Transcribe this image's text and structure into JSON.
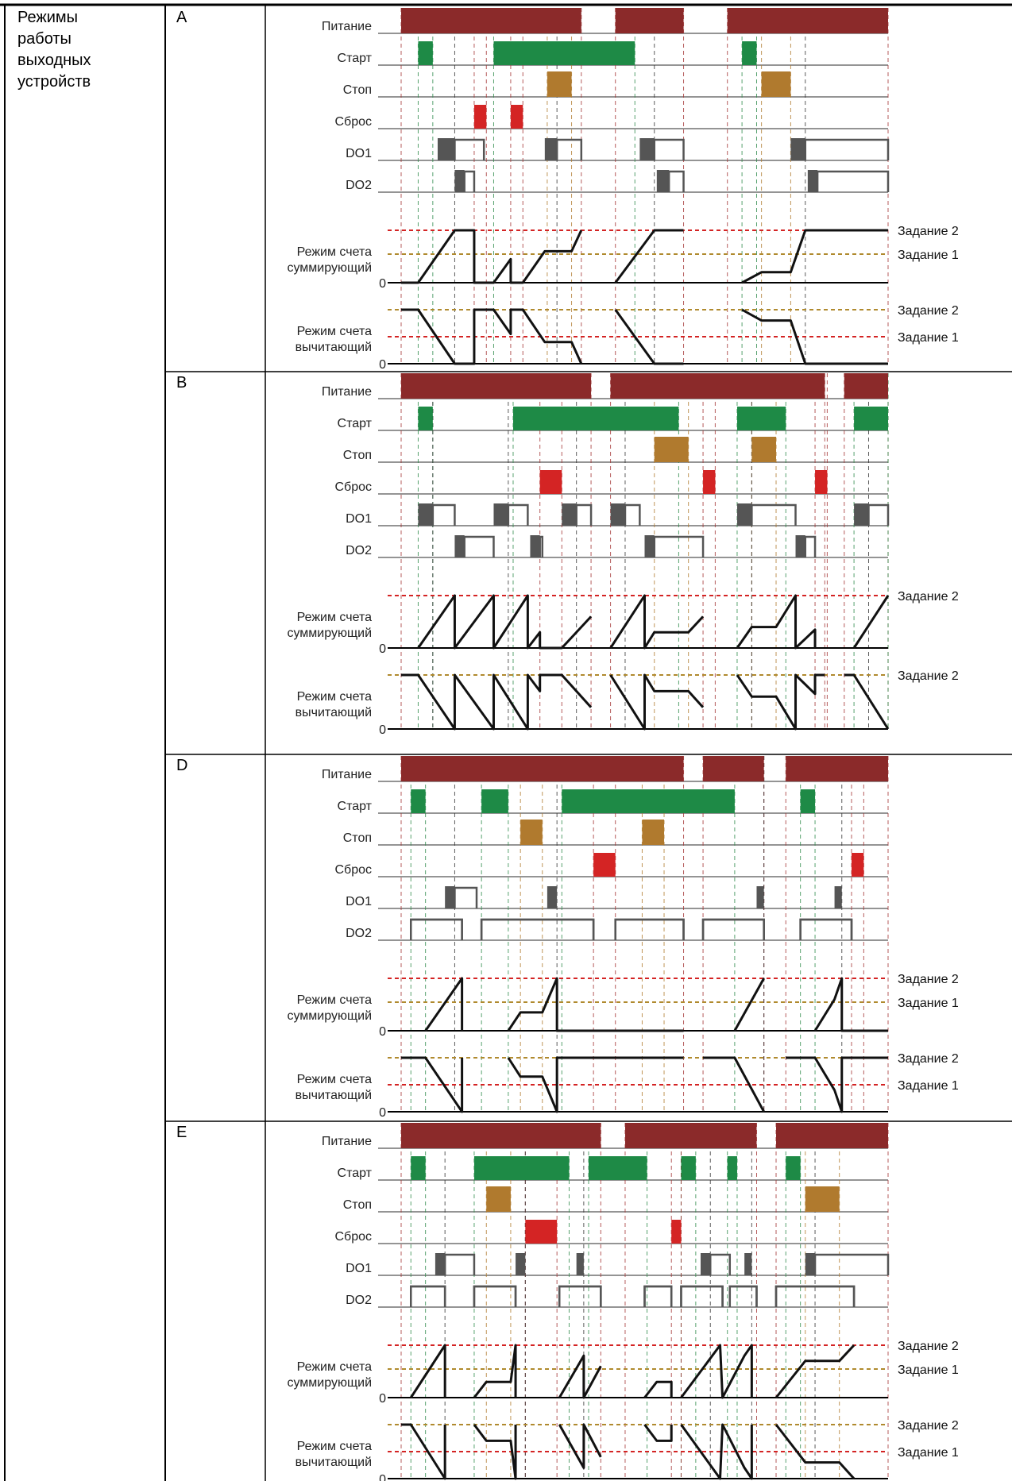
{
  "header_row": {
    "left_cell": [
      "Режимы",
      "работы",
      "выходных",
      "устройств"
    ]
  },
  "signals": [
    "Питание",
    "Старт",
    "Стоп",
    "Сброс",
    "DO1",
    "DO2"
  ],
  "mode_labels": {
    "summing": [
      "Режим счета",
      "суммирующий"
    ],
    "subtracting": [
      "Режим счета",
      "вычитающий"
    ],
    "zero": "0"
  },
  "task_labels": {
    "task2": "Задание 2",
    "task1": "Задание 1"
  },
  "colors": {
    "power": "#8B2A2A",
    "start": "#1E8A46",
    "stop": "#B07A2E",
    "reset": "#D42424",
    "do": "#555555",
    "task2_line": "#D42424",
    "task1_line": "#B08A2E",
    "guide_green": "#2E8A4A",
    "guide_orange": "#B07A2E",
    "guide_red": "#A33333",
    "guide_dark": "#333333"
  },
  "sections": [
    {
      "id": "A",
      "label": "A",
      "task1": true,
      "power": [
        [
          0.0,
          0.37
        ],
        [
          0.44,
          0.58
        ],
        [
          0.67,
          1.0
        ]
      ],
      "start": [
        [
          0.035,
          0.065
        ],
        [
          0.19,
          0.48
        ],
        [
          0.7,
          0.73
        ]
      ],
      "stop": [
        [
          0.3,
          0.35
        ],
        [
          0.74,
          0.8
        ]
      ],
      "reset": [
        [
          0.15,
          0.175
        ],
        [
          0.225,
          0.25
        ]
      ],
      "do1": [
        [
          0.075,
          0.11,
          0.17
        ],
        [
          0.295,
          0.32,
          0.37
        ],
        [
          0.49,
          0.52,
          0.58
        ],
        [
          0.8,
          0.83,
          1.0
        ]
      ],
      "do2": [
        [
          0.11,
          0.13,
          0.15
        ],
        [
          0.525,
          0.55,
          0.58
        ],
        [
          0.835,
          0.855,
          1.0
        ]
      ],
      "sum_curve": [
        [
          0,
          0
        ],
        [
          0.035,
          0
        ],
        [
          0.11,
          1
        ],
        [
          0.15,
          1
        ],
        [
          0.15,
          0
        ],
        [
          0.19,
          0
        ],
        [
          0.225,
          0.45
        ],
        [
          0.225,
          0
        ],
        [
          0.25,
          0
        ],
        [
          0.295,
          0.6
        ],
        [
          0.35,
          0.6
        ],
        [
          0.37,
          1
        ]
      ],
      "sum_curve2": [
        [
          0.44,
          0
        ],
        [
          0.52,
          1
        ],
        [
          0.58,
          1
        ]
      ],
      "sum_curve3": [
        [
          0.7,
          0
        ],
        [
          0.74,
          0.2
        ],
        [
          0.8,
          0.2
        ],
        [
          0.83,
          1
        ],
        [
          1.0,
          1
        ]
      ],
      "sub_curve": [
        [
          0,
          1
        ],
        [
          0.035,
          1
        ],
        [
          0.11,
          0
        ],
        [
          0.15,
          0
        ],
        [
          0.15,
          1
        ],
        [
          0.19,
          1
        ],
        [
          0.225,
          0.55
        ],
        [
          0.225,
          1
        ],
        [
          0.25,
          1
        ],
        [
          0.295,
          0.4
        ],
        [
          0.35,
          0.4
        ],
        [
          0.37,
          0
        ]
      ],
      "sub_curve2": [
        [
          0.44,
          1
        ],
        [
          0.52,
          0
        ],
        [
          0.58,
          0
        ]
      ],
      "sub_curve3": [
        [
          0.7,
          1
        ],
        [
          0.74,
          0.8
        ],
        [
          0.8,
          0.8
        ],
        [
          0.83,
          0
        ],
        [
          1.0,
          0
        ]
      ]
    },
    {
      "id": "B",
      "label": "B",
      "task1": false,
      "power": [
        [
          0.0,
          0.39
        ],
        [
          0.43,
          0.87
        ],
        [
          0.91,
          1.0
        ]
      ],
      "start": [
        [
          0.035,
          0.065
        ],
        [
          0.23,
          0.57
        ],
        [
          0.69,
          0.79
        ],
        [
          0.93,
          1.0
        ]
      ],
      "stop": [
        [
          0.52,
          0.59
        ],
        [
          0.72,
          0.77
        ]
      ],
      "reset": [
        [
          0.285,
          0.33
        ],
        [
          0.62,
          0.645
        ],
        [
          0.85,
          0.875
        ]
      ],
      "do1": [
        [
          0.035,
          0.065,
          0.11
        ],
        [
          0.19,
          0.22,
          0.26
        ],
        [
          0.33,
          0.36,
          0.39
        ],
        [
          0.43,
          0.46,
          0.49
        ],
        [
          0.69,
          0.72,
          0.81
        ],
        [
          0.93,
          0.96,
          1.0
        ]
      ],
      "do2": [
        [
          0.11,
          0.13,
          0.19
        ],
        [
          0.265,
          0.285,
          0.29
        ],
        [
          0.5,
          0.52,
          0.62
        ],
        [
          0.81,
          0.83,
          0.85
        ]
      ],
      "sum_curve": [
        [
          0.035,
          0
        ],
        [
          0.11,
          1
        ],
        [
          0.11,
          0
        ],
        [
          0.19,
          1
        ],
        [
          0.19,
          0
        ],
        [
          0.26,
          1
        ],
        [
          0.26,
          0
        ],
        [
          0.285,
          0.3
        ],
        [
          0.285,
          0
        ],
        [
          0.33,
          0
        ],
        [
          0.39,
          0.6
        ]
      ],
      "sum_curve2": [
        [
          0.43,
          0
        ],
        [
          0.5,
          1
        ],
        [
          0.5,
          0
        ],
        [
          0.52,
          0.3
        ],
        [
          0.59,
          0.3
        ],
        [
          0.62,
          0.6
        ]
      ],
      "sum_curve3": [
        [
          0.69,
          0
        ],
        [
          0.72,
          0.4
        ],
        [
          0.77,
          0.4
        ],
        [
          0.81,
          1
        ],
        [
          0.81,
          0
        ],
        [
          0.85,
          0.35
        ],
        [
          0.85,
          0
        ]
      ],
      "sum_curve4": [
        [
          0.93,
          0
        ],
        [
          1.0,
          1
        ]
      ],
      "sub_curve": [
        [
          0,
          1
        ],
        [
          0.035,
          1
        ],
        [
          0.11,
          0
        ],
        [
          0.11,
          1
        ],
        [
          0.19,
          0
        ],
        [
          0.19,
          1
        ],
        [
          0.26,
          0
        ],
        [
          0.26,
          1
        ],
        [
          0.285,
          0.7
        ],
        [
          0.285,
          1
        ],
        [
          0.33,
          1
        ],
        [
          0.39,
          0.4
        ]
      ],
      "sub_curve2": [
        [
          0.43,
          1
        ],
        [
          0.5,
          0
        ],
        [
          0.5,
          1
        ],
        [
          0.52,
          0.7
        ],
        [
          0.59,
          0.7
        ],
        [
          0.62,
          0.4
        ]
      ],
      "sub_curve3": [
        [
          0.69,
          1
        ],
        [
          0.72,
          0.6
        ],
        [
          0.77,
          0.6
        ],
        [
          0.81,
          0
        ],
        [
          0.81,
          1
        ],
        [
          0.85,
          0.65
        ],
        [
          0.85,
          1
        ],
        [
          0.87,
          1
        ]
      ],
      "sub_curve4": [
        [
          0.91,
          1
        ],
        [
          0.93,
          1
        ],
        [
          1.0,
          0
        ]
      ]
    },
    {
      "id": "D",
      "label": "D",
      "task1": true,
      "power": [
        [
          0.0,
          0.58
        ],
        [
          0.62,
          0.745
        ],
        [
          0.79,
          1.0
        ]
      ],
      "start": [
        [
          0.02,
          0.05
        ],
        [
          0.165,
          0.22
        ],
        [
          0.33,
          0.685
        ],
        [
          0.82,
          0.85
        ]
      ],
      "stop": [
        [
          0.245,
          0.29
        ],
        [
          0.495,
          0.54
        ]
      ],
      "reset": [
        [
          0.395,
          0.44
        ],
        [
          0.925,
          0.95
        ]
      ],
      "do1": [
        [
          0.09,
          0.11,
          0.155
        ],
        [
          0.3,
          0.32,
          0.32
        ],
        [
          0.73,
          0.745,
          0.745
        ],
        [
          0.89,
          0.905,
          0.905
        ]
      ],
      "do2": [
        [
          0.02,
          0.02,
          0.125
        ],
        [
          0.165,
          0.165,
          0.395
        ],
        [
          0.44,
          0.44,
          0.58
        ],
        [
          0.62,
          0.62,
          0.745
        ],
        [
          0.82,
          0.82,
          0.925
        ]
      ],
      "sum_curve": [
        [
          0.05,
          0
        ],
        [
          0.125,
          1
        ],
        [
          0.125,
          0
        ]
      ],
      "sum_curve2": [
        [
          0.22,
          0
        ],
        [
          0.245,
          0.35
        ],
        [
          0.29,
          0.35
        ],
        [
          0.32,
          1
        ],
        [
          0.32,
          0
        ],
        [
          0.58,
          0
        ]
      ],
      "sum_curve3": [
        [
          0.685,
          0
        ],
        [
          0.745,
          1
        ]
      ],
      "sum_curve4": [
        [
          0.85,
          0
        ],
        [
          0.89,
          0.6
        ],
        [
          0.905,
          1
        ],
        [
          0.905,
          0
        ],
        [
          1.0,
          0
        ]
      ],
      "sub_curve": [
        [
          0,
          1
        ],
        [
          0.05,
          1
        ],
        [
          0.125,
          0
        ],
        [
          0.125,
          1
        ]
      ],
      "sub_curve2": [
        [
          0.22,
          1
        ],
        [
          0.245,
          0.65
        ],
        [
          0.29,
          0.65
        ],
        [
          0.32,
          0
        ],
        [
          0.32,
          1
        ],
        [
          0.58,
          1
        ]
      ],
      "sub_curve3": [
        [
          0.62,
          1
        ],
        [
          0.685,
          1
        ],
        [
          0.745,
          0
        ]
      ],
      "sub_curve4": [
        [
          0.79,
          1
        ],
        [
          0.85,
          1
        ],
        [
          0.89,
          0.4
        ],
        [
          0.905,
          0
        ],
        [
          0.905,
          1
        ],
        [
          1.0,
          1
        ]
      ]
    },
    {
      "id": "E",
      "label": "E",
      "task1": true,
      "power": [
        [
          0.0,
          0.41
        ],
        [
          0.46,
          0.73
        ],
        [
          0.77,
          1.0
        ]
      ],
      "start": [
        [
          0.02,
          0.05
        ],
        [
          0.15,
          0.345
        ],
        [
          0.385,
          0.505
        ],
        [
          0.575,
          0.605
        ],
        [
          0.67,
          0.69
        ],
        [
          0.79,
          0.82
        ]
      ],
      "stop": [
        [
          0.175,
          0.225
        ],
        [
          0.83,
          0.9
        ]
      ],
      "reset": [
        [
          0.255,
          0.32
        ],
        [
          0.555,
          0.575
        ]
      ],
      "do1": [
        [
          0.07,
          0.09,
          0.15
        ],
        [
          0.235,
          0.255,
          0.255
        ],
        [
          0.36,
          0.375,
          0.375
        ],
        [
          0.615,
          0.635,
          0.675
        ],
        [
          0.705,
          0.72,
          0.72
        ],
        [
          0.83,
          0.85,
          1.0
        ]
      ],
      "do2": [
        [
          0.02,
          0.02,
          0.09
        ],
        [
          0.15,
          0.15,
          0.235
        ],
        [
          0.325,
          0.325,
          0.41
        ],
        [
          0.5,
          0.5,
          0.555
        ],
        [
          0.575,
          0.575,
          0.66
        ],
        [
          0.675,
          0.675,
          0.73
        ],
        [
          0.77,
          0.77,
          0.93
        ]
      ],
      "sum_curve": [
        [
          0.02,
          0
        ],
        [
          0.09,
          1
        ],
        [
          0.09,
          0
        ]
      ],
      "sum_curve2": [
        [
          0.15,
          0
        ],
        [
          0.175,
          0.3
        ],
        [
          0.225,
          0.3
        ],
        [
          0.235,
          1
        ],
        [
          0.235,
          0
        ]
      ],
      "sum_curve3": [
        [
          0.325,
          0
        ],
        [
          0.375,
          0.8
        ],
        [
          0.375,
          0
        ],
        [
          0.41,
          0.6
        ]
      ],
      "sum_curve4": [
        [
          0.5,
          0
        ],
        [
          0.525,
          0.3
        ],
        [
          0.555,
          0.3
        ],
        [
          0.555,
          0
        ]
      ],
      "sum_curve5": [
        [
          0.575,
          0
        ],
        [
          0.655,
          1
        ],
        [
          0.66,
          0
        ],
        [
          0.705,
          0.8
        ],
        [
          0.72,
          1
        ],
        [
          0.72,
          0
        ]
      ],
      "sum_curve6": [
        [
          0.77,
          0
        ],
        [
          0.83,
          0.7
        ],
        [
          0.9,
          0.7
        ],
        [
          0.93,
          1
        ]
      ],
      "sub_curve": [
        [
          0,
          1
        ],
        [
          0.02,
          1
        ],
        [
          0.09,
          0
        ],
        [
          0.09,
          1
        ]
      ],
      "sub_curve2": [
        [
          0.15,
          1
        ],
        [
          0.175,
          0.7
        ],
        [
          0.225,
          0.7
        ],
        [
          0.235,
          0
        ],
        [
          0.235,
          1
        ]
      ],
      "sub_curve3": [
        [
          0.325,
          1
        ],
        [
          0.375,
          0.2
        ],
        [
          0.375,
          1
        ],
        [
          0.41,
          0.4
        ]
      ],
      "sub_curve4": [
        [
          0.5,
          1
        ],
        [
          0.525,
          0.7
        ],
        [
          0.555,
          0.7
        ],
        [
          0.555,
          1
        ]
      ],
      "sub_curve5": [
        [
          0.575,
          1
        ],
        [
          0.655,
          0
        ],
        [
          0.66,
          1
        ],
        [
          0.705,
          0.2
        ],
        [
          0.72,
          0
        ],
        [
          0.72,
          1
        ]
      ],
      "sub_curve6": [
        [
          0.77,
          1
        ],
        [
          0.83,
          0.3
        ],
        [
          0.9,
          0.3
        ],
        [
          0.93,
          0
        ]
      ]
    }
  ]
}
